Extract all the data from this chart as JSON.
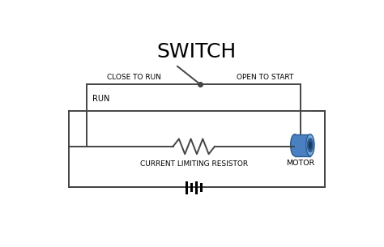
{
  "title": "SWITCH",
  "title_fontsize": 18,
  "line_color": "#444444",
  "label_close_to_run": "CLOSE TO RUN",
  "label_open_to_start": "OPEN TO START",
  "label_run": "RUN",
  "label_clr": "CURRENT LIMITING RESISTOR",
  "label_motor": "MOTOR",
  "motor_color_body": "#4a7fc1",
  "motor_color_front": "#7aaedd",
  "motor_color_dark": "#2a5a90",
  "motor_color_hole": "#1a3a60",
  "lw_main": 1.4
}
